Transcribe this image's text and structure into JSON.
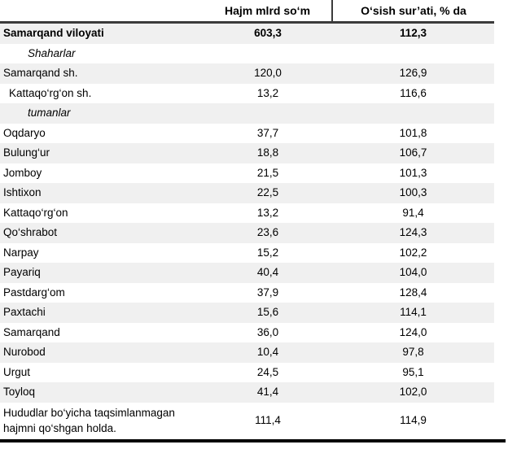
{
  "table": {
    "header": {
      "region": "",
      "volume": "Hajm mlrd so‘m",
      "growth": "O‘sish sur’ati, % da"
    },
    "rows": [
      {
        "name": "Samarqand viloyati",
        "hajm": "603,3",
        "osish": "112,3",
        "type": "total"
      },
      {
        "name": "Shaharlar",
        "hajm": "",
        "osish": "",
        "type": "section"
      },
      {
        "name": "Samarqand sh.",
        "hajm": "120,0",
        "osish": "126,9",
        "type": "district"
      },
      {
        "name": "Kattaqo‘rg‘on sh.",
        "hajm": "13,2",
        "osish": "116,6",
        "type": "district",
        "indent": true
      },
      {
        "name": "tumanlar",
        "hajm": "",
        "osish": "",
        "type": "section"
      },
      {
        "name": "Oqdaryo",
        "hajm": "37,7",
        "osish": "101,8",
        "type": "district"
      },
      {
        "name": "Bulung‘ur",
        "hajm": "18,8",
        "osish": "106,7",
        "type": "district"
      },
      {
        "name": "Jomboy",
        "hajm": "21,5",
        "osish": "101,3",
        "type": "district"
      },
      {
        "name": "Ishtixon",
        "hajm": "22,5",
        "osish": "100,3",
        "type": "district"
      },
      {
        "name": "Kattaqo‘rg‘on",
        "hajm": "13,2",
        "osish": "91,4",
        "type": "district"
      },
      {
        "name": "Qo‘shrabot",
        "hajm": "23,6",
        "osish": "124,3",
        "type": "district"
      },
      {
        "name": "Narpay",
        "hajm": "15,2",
        "osish": "102,2",
        "type": "district"
      },
      {
        "name": "Payariq",
        "hajm": "40,4",
        "osish": "104,0",
        "type": "district"
      },
      {
        "name": "Pastdarg‘om",
        "hajm": "37,9",
        "osish": "128,4",
        "type": "district"
      },
      {
        "name": "Paxtachi",
        "hajm": "15,6",
        "osish": "114,1",
        "type": "district"
      },
      {
        "name": "Samarqand",
        "hajm": "36,0",
        "osish": "124,0",
        "type": "district"
      },
      {
        "name": "Nurobod",
        "hajm": "10,4",
        "osish": "97,8",
        "type": "district"
      },
      {
        "name": "Urgut",
        "hajm": "24,5",
        "osish": "95,1",
        "type": "district"
      },
      {
        "name": "Toyloq",
        "hajm": "41,4",
        "osish": "102,0",
        "type": "district"
      },
      {
        "name": "Hududlar bo‘yicha taqsimlanmagan\nhajmni qo‘shgan holda.",
        "hajm": "111,4",
        "osish": "114,9",
        "type": "footer"
      }
    ]
  },
  "colors": {
    "stripe": "#f0f0f0",
    "header_rule": "#3b3b3b",
    "bottom_rule": "#000000",
    "text": "#000000"
  }
}
